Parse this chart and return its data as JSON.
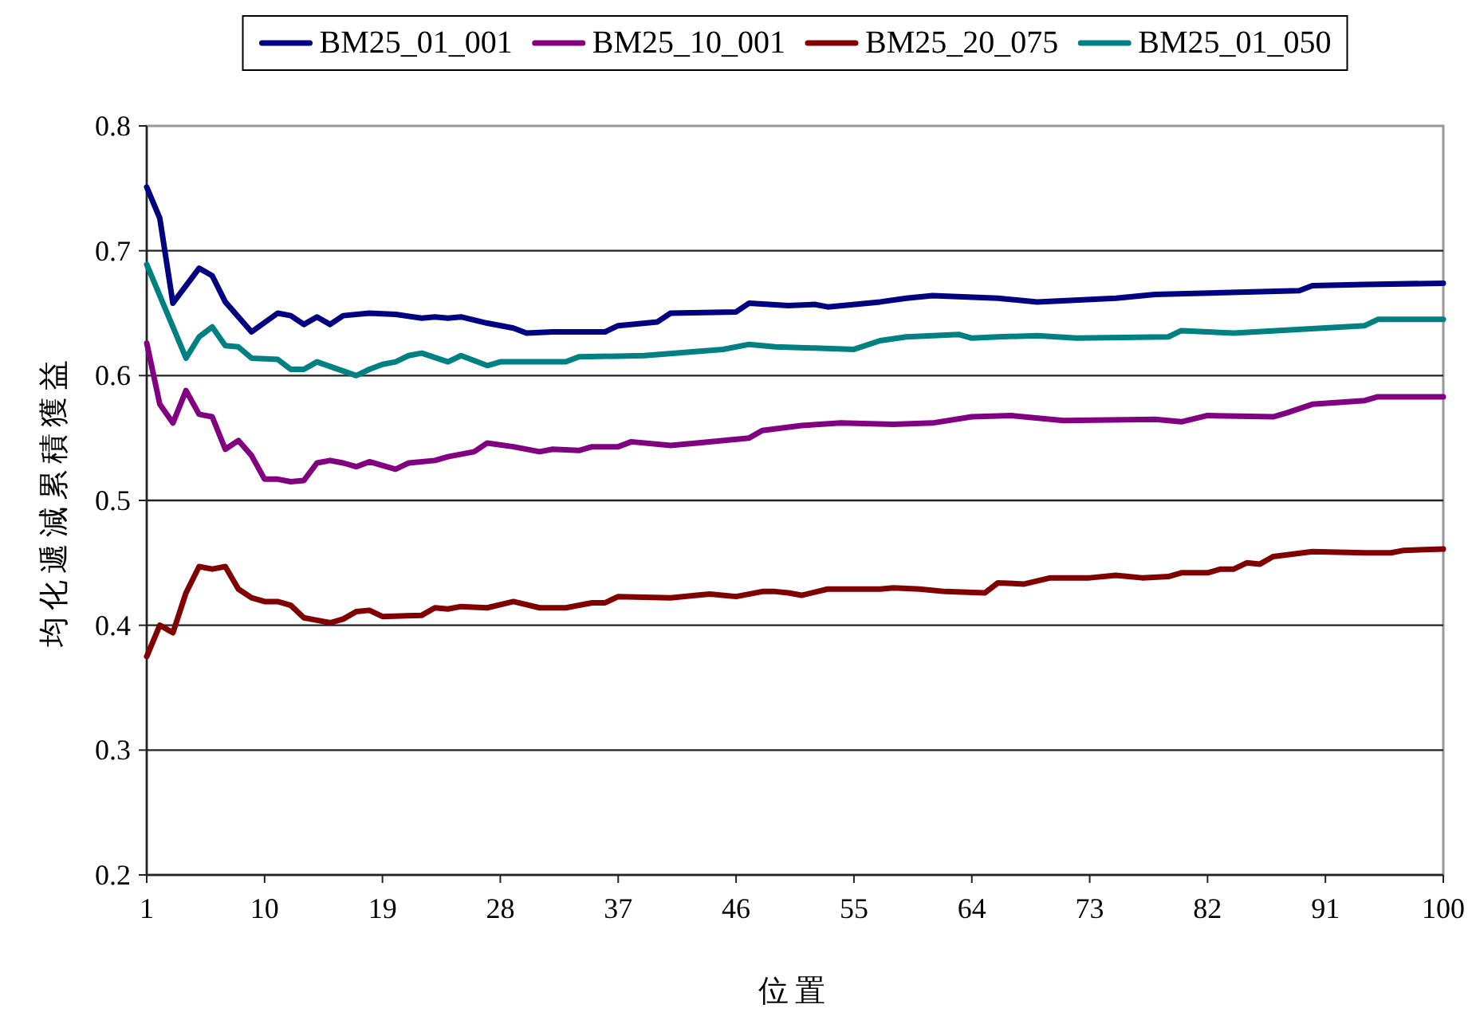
{
  "chart_data": {
    "type": "line",
    "xlabel": "位置",
    "ylabel": "均化遞減累積獲益",
    "xlim": [
      1,
      100
    ],
    "xticks": [
      1,
      10,
      19,
      28,
      37,
      46,
      55,
      64,
      73,
      82,
      91,
      100
    ],
    "ylim": [
      0.2,
      0.8
    ],
    "yticks": [
      0.2,
      0.3,
      0.4,
      0.5,
      0.6,
      0.7,
      0.8
    ],
    "grid": "y",
    "legend": "top",
    "marker": "none",
    "line_style": "solid",
    "series": [
      {
        "name": "BM25_01_001",
        "color": "#000080",
        "x": [
          1,
          2,
          3,
          5,
          6,
          7,
          9,
          11,
          12,
          13,
          14,
          15,
          16,
          18,
          20,
          22,
          23,
          24,
          25,
          27,
          29,
          30,
          32,
          33,
          36,
          37,
          40,
          41,
          46,
          47,
          50,
          52,
          53,
          57,
          59,
          61,
          66,
          69,
          75,
          78,
          89,
          90,
          94,
          100
        ],
        "values": [
          0.751,
          0.726,
          0.658,
          0.686,
          0.68,
          0.659,
          0.635,
          0.65,
          0.648,
          0.641,
          0.647,
          0.641,
          0.648,
          0.65,
          0.649,
          0.646,
          0.647,
          0.646,
          0.647,
          0.642,
          0.638,
          0.634,
          0.635,
          0.635,
          0.635,
          0.64,
          0.643,
          0.65,
          0.651,
          0.658,
          0.656,
          0.657,
          0.655,
          0.659,
          0.662,
          0.664,
          0.662,
          0.659,
          0.662,
          0.665,
          0.668,
          0.672,
          0.673,
          0.674
        ]
      },
      {
        "name": "BM25_10_001",
        "color": "#800080",
        "x": [
          1,
          2,
          3,
          4,
          5,
          6,
          7,
          8,
          9,
          10,
          11,
          12,
          13,
          14,
          15,
          16,
          17,
          18,
          20,
          21,
          23,
          24,
          26,
          27,
          29,
          31,
          32,
          34,
          35,
          37,
          38,
          41,
          43,
          47,
          48,
          51,
          54,
          58,
          61,
          64,
          67,
          71,
          78,
          80,
          82,
          87,
          88,
          90,
          94,
          95,
          100
        ],
        "values": [
          0.626,
          0.577,
          0.562,
          0.588,
          0.569,
          0.567,
          0.541,
          0.548,
          0.536,
          0.517,
          0.517,
          0.515,
          0.516,
          0.53,
          0.532,
          0.53,
          0.527,
          0.531,
          0.525,
          0.53,
          0.532,
          0.535,
          0.539,
          0.546,
          0.543,
          0.539,
          0.541,
          0.54,
          0.543,
          0.543,
          0.547,
          0.544,
          0.546,
          0.55,
          0.556,
          0.56,
          0.562,
          0.561,
          0.562,
          0.567,
          0.568,
          0.564,
          0.565,
          0.563,
          0.568,
          0.567,
          0.57,
          0.577,
          0.58,
          0.583,
          0.583
        ]
      },
      {
        "name": "BM25_20_075",
        "color": "#800000",
        "x": [
          1,
          2,
          3,
          4,
          5,
          6,
          7,
          8,
          9,
          10,
          11,
          12,
          13,
          14,
          15,
          16,
          17,
          18,
          19,
          22,
          23,
          24,
          25,
          27,
          29,
          31,
          33,
          35,
          36,
          37,
          41,
          43,
          44,
          46,
          48,
          49,
          50,
          51,
          53,
          57,
          58,
          60,
          62,
          65,
          66,
          68,
          70,
          73,
          75,
          77,
          79,
          80,
          82,
          83,
          84,
          85,
          86,
          87,
          90,
          94,
          96,
          97,
          100
        ],
        "values": [
          0.375,
          0.4,
          0.394,
          0.426,
          0.447,
          0.445,
          0.447,
          0.429,
          0.422,
          0.419,
          0.419,
          0.416,
          0.406,
          0.404,
          0.402,
          0.405,
          0.411,
          0.412,
          0.407,
          0.408,
          0.414,
          0.413,
          0.415,
          0.414,
          0.419,
          0.414,
          0.414,
          0.418,
          0.418,
          0.423,
          0.422,
          0.424,
          0.425,
          0.423,
          0.427,
          0.427,
          0.426,
          0.424,
          0.429,
          0.429,
          0.43,
          0.429,
          0.427,
          0.426,
          0.434,
          0.433,
          0.438,
          0.438,
          0.44,
          0.438,
          0.439,
          0.442,
          0.442,
          0.445,
          0.445,
          0.45,
          0.449,
          0.455,
          0.459,
          0.458,
          0.458,
          0.46,
          0.461
        ]
      },
      {
        "name": "BM25_01_050",
        "color": "#008080",
        "x": [
          1,
          4,
          5,
          6,
          7,
          8,
          9,
          11,
          12,
          13,
          14,
          17,
          18,
          19,
          20,
          21,
          22,
          24,
          25,
          27,
          28,
          32,
          33,
          34,
          39,
          45,
          47,
          49,
          52,
          55,
          57,
          59,
          63,
          64,
          66,
          69,
          72,
          79,
          80,
          84,
          94,
          95,
          100
        ],
        "values": [
          0.689,
          0.614,
          0.631,
          0.639,
          0.624,
          0.623,
          0.614,
          0.613,
          0.605,
          0.605,
          0.611,
          0.6,
          0.605,
          0.609,
          0.611,
          0.616,
          0.618,
          0.611,
          0.616,
          0.608,
          0.611,
          0.611,
          0.611,
          0.615,
          0.616,
          0.621,
          0.625,
          0.623,
          0.622,
          0.621,
          0.628,
          0.631,
          0.633,
          0.63,
          0.631,
          0.632,
          0.63,
          0.631,
          0.636,
          0.634,
          0.64,
          0.645,
          0.645
        ]
      }
    ]
  }
}
